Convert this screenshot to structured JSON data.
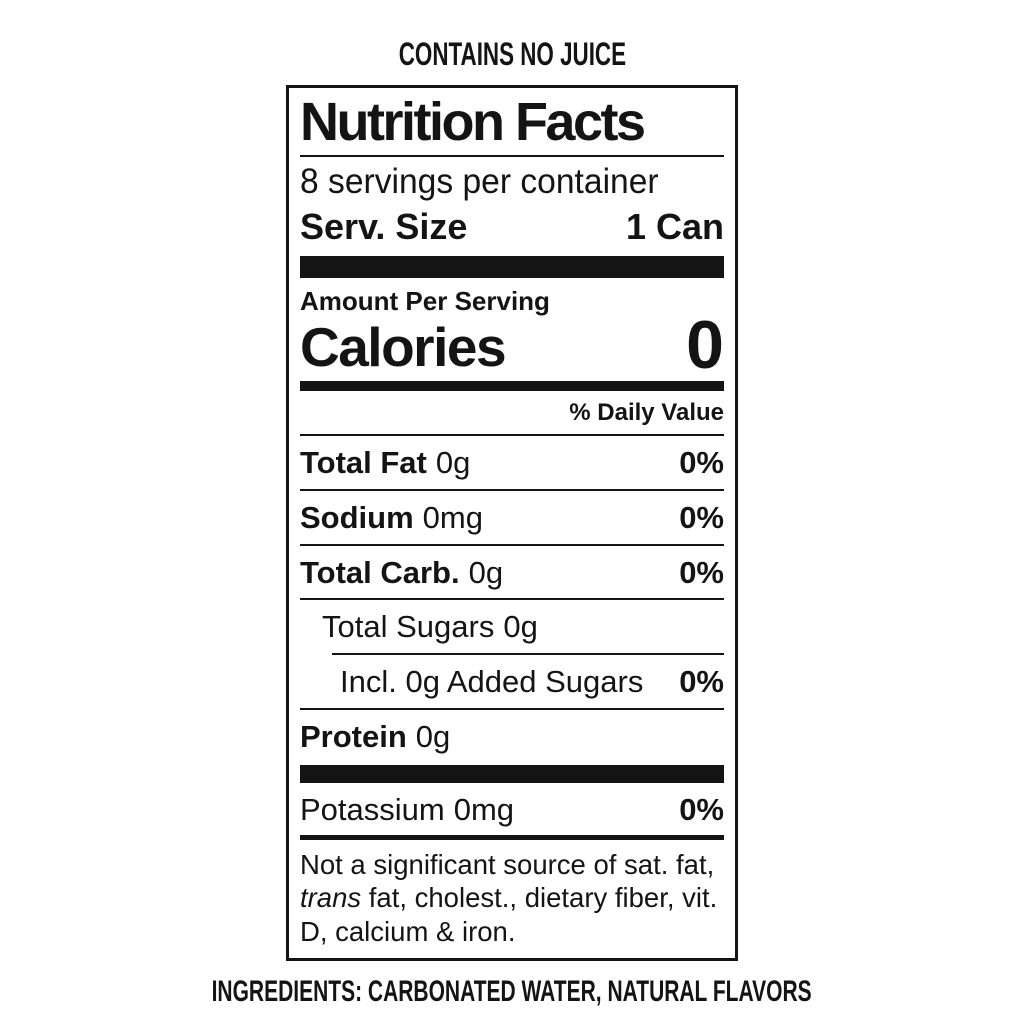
{
  "page": {
    "top_note": "CONTAINS NO JUICE",
    "ingredients": "INGREDIENTS: CARBONATED WATER, NATURAL FLAVORS"
  },
  "label": {
    "title": "Nutrition Facts",
    "servings_per_container": "8 servings per container",
    "serving_size": {
      "label": "Serv. Size",
      "value": "1 Can"
    },
    "amount_per_serving": "Amount Per Serving",
    "calories": {
      "label": "Calories",
      "value": "0"
    },
    "daily_value_header": "% Daily Value",
    "rows": [
      {
        "name": "Total Fat",
        "amount": "0g",
        "dv": "0%"
      },
      {
        "name": "Sodium",
        "amount": "0mg",
        "dv": "0%"
      },
      {
        "name": "Total Carb.",
        "amount": "0g",
        "dv": "0%"
      },
      {
        "name": "Total Sugars",
        "amount": "0g",
        "dv": ""
      },
      {
        "name": "Incl. 0g Added Sugars",
        "amount": "",
        "dv": "0%"
      },
      {
        "name": "Protein",
        "amount": "0g",
        "dv": ""
      },
      {
        "name": "Potassium",
        "amount": "0mg",
        "dv": "0%"
      }
    ],
    "footnote": {
      "part1": "Not a significant source of sat. fat, ",
      "italic": "trans",
      "part2": " fat, cholest., dietary fiber, vit. D, calcium & iron."
    }
  }
}
